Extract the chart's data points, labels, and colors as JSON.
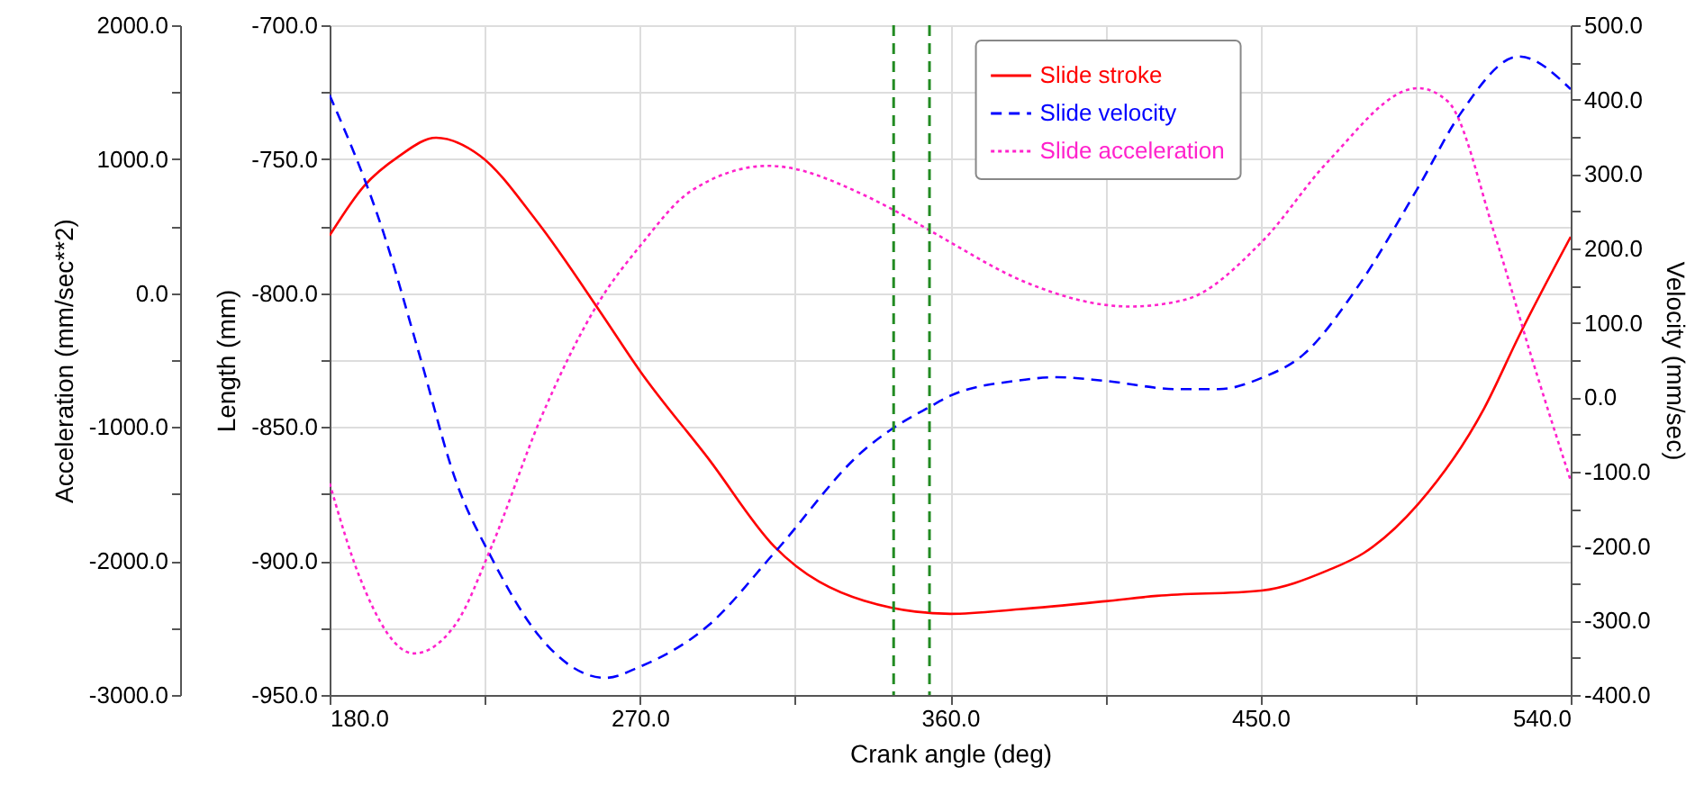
{
  "chart_data": {
    "type": "line",
    "xlabel": "Crank angle (deg)",
    "ylabel": "Length (mm)",
    "y2label": "Velocity (mm/sec)",
    "y3label": "Acceleration (mm/sec**2)",
    "xlim": [
      180,
      540
    ],
    "xticks": [
      {
        "value": 180,
        "label": "180.0"
      },
      {
        "value": 225,
        "label": null
      },
      {
        "value": 270,
        "label": "270.0"
      },
      {
        "value": 315,
        "label": null
      },
      {
        "value": 360,
        "label": "360.0"
      },
      {
        "value": 405,
        "label": null
      },
      {
        "value": 450,
        "label": "450.0"
      },
      {
        "value": 495,
        "label": null
      },
      {
        "value": 540,
        "label": "540.0"
      }
    ],
    "ylim": [
      -950,
      -700
    ],
    "yticks": [
      {
        "value": -950,
        "label": "-950.0"
      },
      {
        "value": -925,
        "label": null
      },
      {
        "value": -900,
        "label": "-900.0"
      },
      {
        "value": -875,
        "label": null
      },
      {
        "value": -850,
        "label": "-850.0"
      },
      {
        "value": -825,
        "label": null
      },
      {
        "value": -800,
        "label": "-800.0"
      },
      {
        "value": -775,
        "label": null
      },
      {
        "value": -750,
        "label": "-750.0"
      },
      {
        "value": -725,
        "label": null
      },
      {
        "value": -700,
        "label": "-700.0"
      }
    ],
    "y2lim": [
      -400,
      500
    ],
    "y2ticks": [
      {
        "value": -400,
        "label": "-400.0"
      },
      {
        "value": -350,
        "label": null
      },
      {
        "value": -300,
        "label": "-300.0"
      },
      {
        "value": -250,
        "label": null
      },
      {
        "value": -200,
        "label": "-200.0"
      },
      {
        "value": -150,
        "label": null
      },
      {
        "value": -100,
        "label": "-100.0"
      },
      {
        "value": -50,
        "label": null
      },
      {
        "value": 0,
        "label": "0.0"
      },
      {
        "value": 50,
        "label": null
      },
      {
        "value": 100,
        "label": "100.0"
      },
      {
        "value": 150,
        "label": null
      },
      {
        "value": 200,
        "label": "200.0"
      },
      {
        "value": 250,
        "label": null
      },
      {
        "value": 300,
        "label": "300.0"
      },
      {
        "value": 350,
        "label": null
      },
      {
        "value": 400,
        "label": "400.0"
      },
      {
        "value": 450,
        "label": null
      },
      {
        "value": 500,
        "label": "500.0"
      }
    ],
    "y3lim": [
      -3000,
      2000
    ],
    "y3ticks": [
      {
        "value": -3000,
        "label": "-3000.0"
      },
      {
        "value": -2500,
        "label": null
      },
      {
        "value": -2000,
        "label": "-2000.0"
      },
      {
        "value": -1500,
        "label": null
      },
      {
        "value": -1000,
        "label": "-1000.0"
      },
      {
        "value": -500,
        "label": null
      },
      {
        "value": 0,
        "label": "0.0"
      },
      {
        "value": 500,
        "label": null
      },
      {
        "value": 1000,
        "label": "1000.0"
      },
      {
        "value": 1500,
        "label": null
      },
      {
        "value": 2000,
        "label": "2000.0"
      }
    ],
    "grid": true,
    "legend": "top",
    "marker": "none",
    "ref_lines": [
      {
        "axis": "x",
        "value": 343.6,
        "color": "#228b22",
        "line_style": "dashed"
      },
      {
        "axis": "x",
        "value": 354,
        "color": "#228b22",
        "line_style": "dashed"
      }
    ],
    "series": [
      {
        "name": "Slide stroke",
        "color": "#ff0000",
        "line_style": "solid",
        "x": [
          180,
          190,
          200,
          210.9,
          223.6,
          240,
          258.5,
          270,
          290,
          309,
          335,
          360,
          380,
          405,
          420,
          450.3,
          469.5,
          480,
          495.7,
          514.9,
          525,
          540
        ],
        "values": [
          -778.5,
          -760,
          -749,
          -742,
          -748.7,
          -773,
          -807,
          -829,
          -862,
          -894.6,
          -914.8,
          -919.7,
          -918,
          -915,
          -913,
          -911,
          -903.5,
          -897,
          -878.8,
          -843,
          -816,
          -779
        ]
      },
      {
        "name": "Slide velocity",
        "color": "#0000ff",
        "line_style": "dashed",
        "axis": "y2",
        "x": [
          180,
          195.7,
          206,
          216.6,
          227,
          241,
          260,
          270,
          290,
          309,
          335,
          343.6,
          354,
          360,
          378.8,
          391,
          405,
          426,
          438,
          450.3,
          462.6,
          478,
          496,
          508,
          525,
          540
        ],
        "values": [
          406,
          220,
          58,
          -112,
          -216,
          -322,
          -377,
          -362,
          -306,
          -209,
          -71,
          -41,
          -13,
          2,
          22,
          27,
          22,
          11,
          11,
          26,
          58,
          147,
          284,
          381,
          458,
          414
        ]
      },
      {
        "name": "Slide acceleration",
        "color": "#ff22cc",
        "line_style": "dotted",
        "axis": "y3",
        "x": [
          180,
          188.7,
          204.4,
          216.6,
          227,
          241,
          258.5,
          270,
          284.7,
          307.3,
          335.2,
          343.6,
          354,
          360,
          382,
          412,
          428,
          450.3,
          469.5,
          495.7,
          504.4,
          518.4,
          528.9,
          540
        ],
        "values": [
          -1420,
          -2120,
          -2690,
          -2470,
          -1890,
          -950,
          -50,
          350,
          760,
          950,
          730,
          620,
          470,
          380,
          80,
          -100,
          -50,
          380,
          980,
          1530,
          1430,
          400,
          -500,
          -1400
        ]
      }
    ]
  }
}
